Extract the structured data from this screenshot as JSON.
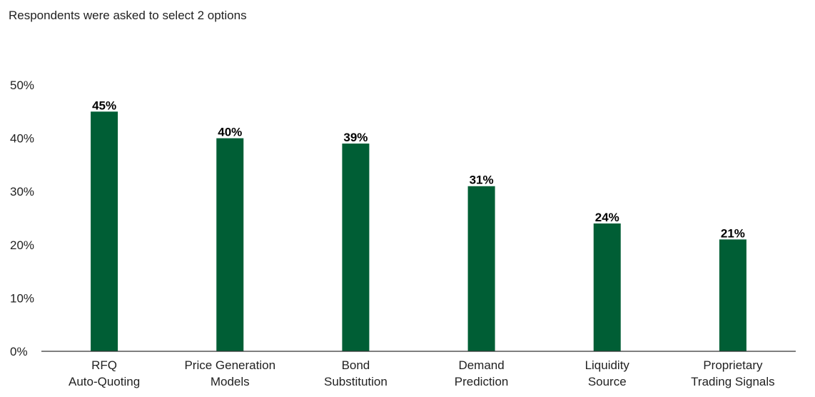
{
  "subtitle": "Respondents were asked to select 2 options",
  "chart_data": {
    "type": "bar",
    "subtitle": "Respondents were asked to select 2 options",
    "categories": [
      [
        "RFQ",
        "Auto-Quoting"
      ],
      [
        "Price Generation",
        "Models"
      ],
      [
        "Bond",
        "Substitution"
      ],
      [
        "Demand",
        "Prediction"
      ],
      [
        "Liquidity",
        "Source"
      ],
      [
        "Proprietary",
        "Trading Signals"
      ]
    ],
    "values": [
      45,
      40,
      39,
      31,
      24,
      21
    ],
    "data_labels": [
      "45%",
      "40%",
      "39%",
      "31%",
      "24%",
      "21%"
    ],
    "yticks": [
      "0%",
      "10%",
      "20%",
      "30%",
      "40%",
      "50%"
    ],
    "ylim": [
      0,
      50
    ],
    "grid": false,
    "legend": "none",
    "bar_color": "#005e35"
  }
}
